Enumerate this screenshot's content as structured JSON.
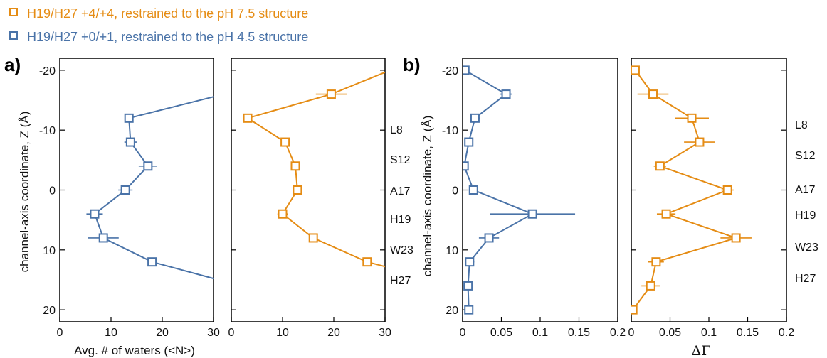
{
  "colors": {
    "orange": "#E58C14",
    "blue": "#4A73A8",
    "axis": "#000000"
  },
  "legend": [
    {
      "label": "H19/H27 +4/+4, restrained to the pH 7.5 structure",
      "color": "#E58C14",
      "marker": "open-square"
    },
    {
      "label": "H19/H27 +0/+1, restrained to the pH 4.5 structure",
      "color": "#4A73A8",
      "marker": "open-square"
    }
  ],
  "panel_labels": [
    "a)",
    "b)"
  ],
  "residue_labels": [
    "L8",
    "S12",
    "A17",
    "H19",
    "W23",
    "H27"
  ],
  "chart_data": [
    {
      "type": "line",
      "panel": "a-left",
      "xlabel": "Avg. # of waters (<N>)",
      "ylabel": "channel-axis coordinate, Z (Å)",
      "xlim": [
        0,
        30
      ],
      "ylim": [
        -22,
        22
      ],
      "x_ticks": [
        "0",
        "10",
        "20",
        "30"
      ],
      "y_ticks": [
        -20,
        -10,
        0,
        10,
        20
      ],
      "y_reversed": true,
      "series": [
        {
          "color": "#4A73A8",
          "points": [
            {
              "z": -16,
              "x": 32,
              "xerr": 0,
              "marker": false
            },
            {
              "z": -12,
              "x": 13.5,
              "xerr": 0.6,
              "marker": true
            },
            {
              "z": -8,
              "x": 13.8,
              "xerr": 1.2,
              "marker": true
            },
            {
              "z": -4,
              "x": 17.2,
              "xerr": 1.8,
              "marker": true
            },
            {
              "z": 0,
              "x": 12.8,
              "xerr": 1.4,
              "marker": true
            },
            {
              "z": 4,
              "x": 6.8,
              "xerr": 1.6,
              "marker": true
            },
            {
              "z": 8,
              "x": 8.5,
              "xerr": 3.0,
              "marker": true
            },
            {
              "z": 12,
              "x": 18.0,
              "xerr": 0.8,
              "marker": true
            },
            {
              "z": 15,
              "x": 31,
              "xerr": 0,
              "marker": false
            }
          ]
        }
      ]
    },
    {
      "type": "line",
      "panel": "a-right",
      "xlabel": "",
      "xlim": [
        0,
        30
      ],
      "ylim": [
        -22,
        22
      ],
      "x_ticks": [
        "0",
        "10",
        "20",
        "30"
      ],
      "y_reversed": true,
      "series": [
        {
          "color": "#E58C14",
          "points": [
            {
              "z": -20,
              "x": 31,
              "xerr": 0,
              "marker": false
            },
            {
              "z": -16,
              "x": 19.5,
              "xerr": 3.0,
              "marker": true
            },
            {
              "z": -12,
              "x": 3.2,
              "xerr": 0.6,
              "marker": true
            },
            {
              "z": -8,
              "x": 10.5,
              "xerr": 0.8,
              "marker": true
            },
            {
              "z": -4,
              "x": 12.5,
              "xerr": 0.7,
              "marker": true
            },
            {
              "z": 0,
              "x": 12.9,
              "xerr": 0.8,
              "marker": true
            },
            {
              "z": 4,
              "x": 10.0,
              "xerr": 1.0,
              "marker": true
            },
            {
              "z": 8,
              "x": 16.0,
              "xerr": 0.8,
              "marker": true
            },
            {
              "z": 12,
              "x": 26.5,
              "xerr": 0.8,
              "marker": true
            },
            {
              "z": 13,
              "x": 31,
              "xerr": 0,
              "marker": false
            }
          ]
        }
      ]
    },
    {
      "type": "line",
      "panel": "b-left",
      "xlabel": "",
      "ylabel": "channel-axis coordinate, Z (Å)",
      "xlim": [
        0,
        0.2
      ],
      "ylim": [
        -22,
        22
      ],
      "x_ticks": [
        "0",
        "0.05",
        "0.1",
        "0.15",
        "0.2"
      ],
      "y_ticks": [
        -20,
        -10,
        0,
        10,
        20
      ],
      "y_reversed": true,
      "series": [
        {
          "color": "#4A73A8",
          "points": [
            {
              "z": -20,
              "x": 0.003,
              "xerr": 0.003,
              "marker": true
            },
            {
              "z": -16,
              "x": 0.056,
              "xerr": 0.008,
              "marker": true
            },
            {
              "z": -12,
              "x": 0.016,
              "xerr": 0.006,
              "marker": true
            },
            {
              "z": -8,
              "x": 0.008,
              "xerr": 0.003,
              "marker": true
            },
            {
              "z": -4,
              "x": 0.002,
              "xerr": 0.002,
              "marker": true
            },
            {
              "z": 0,
              "x": 0.014,
              "xerr": 0.006,
              "marker": true
            },
            {
              "z": 4,
              "x": 0.09,
              "xerr": 0.055,
              "marker": true
            },
            {
              "z": 8,
              "x": 0.034,
              "xerr": 0.013,
              "marker": true
            },
            {
              "z": 12,
              "x": 0.009,
              "xerr": 0.006,
              "marker": true
            },
            {
              "z": 16,
              "x": 0.007,
              "xerr": 0.006,
              "marker": true
            },
            {
              "z": 20,
              "x": 0.008,
              "xerr": 0.004,
              "marker": true
            }
          ]
        }
      ]
    },
    {
      "type": "line",
      "panel": "b-right",
      "xlabel": "ΔΓ",
      "xlim": [
        0,
        0.2
      ],
      "ylim": [
        -22,
        22
      ],
      "x_ticks": [
        "0",
        "0.05",
        "0.1",
        "0.15",
        "0.2"
      ],
      "y_reversed": true,
      "series": [
        {
          "color": "#E58C14",
          "points": [
            {
              "z": -20,
              "x": 0.005,
              "xerr": 0.004,
              "marker": true
            },
            {
              "z": -16,
              "x": 0.028,
              "xerr": 0.02,
              "marker": true
            },
            {
              "z": -12,
              "x": 0.078,
              "xerr": 0.022,
              "marker": true
            },
            {
              "z": -8,
              "x": 0.088,
              "xerr": 0.02,
              "marker": true
            },
            {
              "z": -4,
              "x": 0.037,
              "xerr": 0.008,
              "marker": true
            },
            {
              "z": 0,
              "x": 0.124,
              "xerr": 0.008,
              "marker": true
            },
            {
              "z": 4,
              "x": 0.045,
              "xerr": 0.012,
              "marker": true
            },
            {
              "z": 8,
              "x": 0.135,
              "xerr": 0.02,
              "marker": true
            },
            {
              "z": 12,
              "x": 0.032,
              "xerr": 0.01,
              "marker": true
            },
            {
              "z": 16,
              "x": 0.025,
              "xerr": 0.012,
              "marker": true
            },
            {
              "z": 20,
              "x": 0.002,
              "xerr": 0.002,
              "marker": true
            }
          ]
        }
      ]
    }
  ]
}
